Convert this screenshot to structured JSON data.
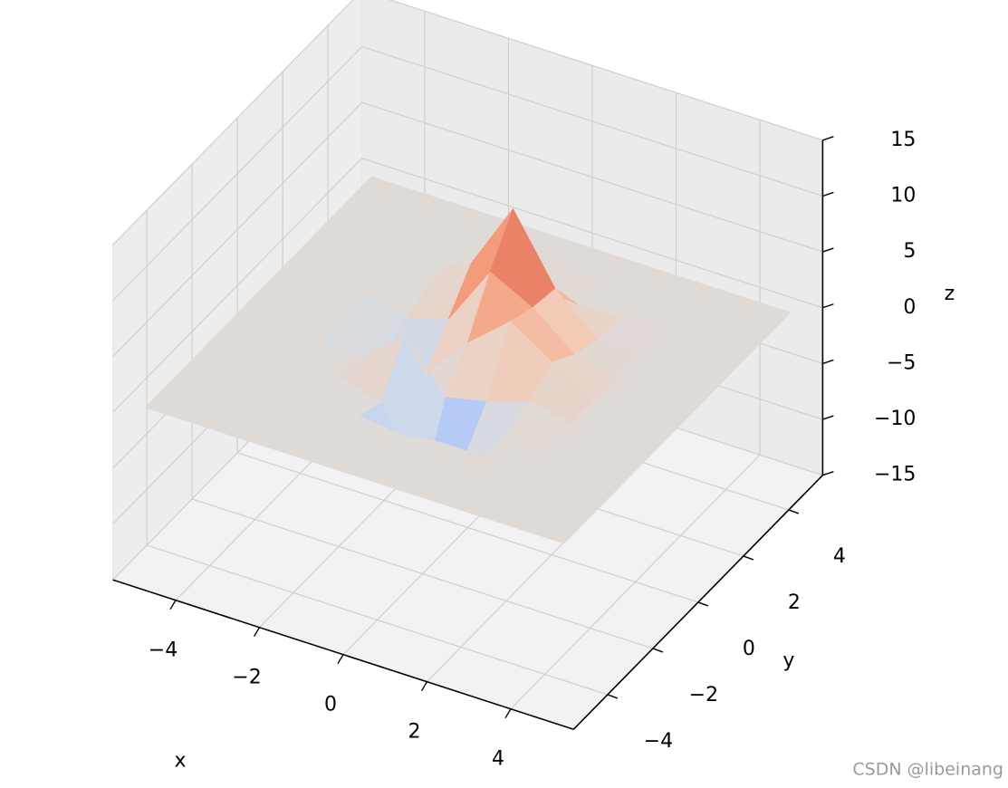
{
  "chart_data": {
    "type": "surface",
    "x": [
      -5,
      -4,
      -3,
      -2,
      -1,
      0,
      1,
      2,
      3,
      4,
      5
    ],
    "y": [
      -5,
      -4,
      -3,
      -2,
      -1,
      0,
      1,
      2,
      3,
      4,
      5
    ],
    "z": [
      [
        0,
        0,
        0,
        0,
        0,
        0,
        0,
        0,
        0,
        0,
        0
      ],
      [
        0,
        0,
        0,
        0,
        0,
        0,
        0,
        0,
        0,
        0,
        0
      ],
      [
        0,
        0,
        0,
        0,
        0,
        -0.4,
        0,
        0,
        0,
        0,
        0
      ],
      [
        0,
        0,
        0,
        0.1,
        -0.9,
        -7.6,
        -3.4,
        -0.1,
        0,
        0,
        0
      ],
      [
        0,
        0,
        0,
        -0.2,
        3.0,
        -1.2,
        -0.4,
        0.8,
        0,
        0,
        0
      ],
      [
        0,
        0,
        0,
        -2.1,
        -2.6,
        1.6,
        4.7,
        2.3,
        0,
        0,
        0
      ],
      [
        0,
        0,
        0,
        -0.8,
        0.4,
        5.9,
        3.9,
        0.9,
        0,
        0,
        0
      ],
      [
        0,
        0,
        0,
        0.1,
        3.3,
        9.4,
        3.5,
        0.2,
        0,
        0,
        0
      ],
      [
        0,
        0,
        0,
        0,
        0,
        0.5,
        0,
        0,
        0,
        0,
        0
      ],
      [
        0,
        0,
        0,
        0,
        0,
        0,
        0,
        0,
        0,
        0,
        0
      ],
      [
        0,
        0,
        0,
        0,
        0,
        0,
        0,
        0,
        0,
        0,
        0
      ]
    ],
    "colormap": "coolwarm",
    "xlabel": "x",
    "ylabel": "y",
    "zlabel": "z",
    "xlim": [
      -5.5,
      5.5
    ],
    "ylim": [
      -5.5,
      5.5
    ],
    "zlim": [
      -15,
      15
    ],
    "xticks": [
      {
        "value": -4,
        "label": "−4"
      },
      {
        "value": -2,
        "label": "−2"
      },
      0,
      2,
      4
    ],
    "yticks": [
      {
        "value": -4,
        "label": "−4"
      },
      {
        "value": -2,
        "label": "−2"
      },
      0,
      2,
      4
    ],
    "zticks": [
      {
        "value": -15,
        "label": "−15"
      },
      {
        "value": -10,
        "label": "−10"
      },
      {
        "value": -5,
        "label": "−5"
      },
      0,
      5,
      10,
      15
    ],
    "grid": true
  },
  "watermark": "CSDN @libeinang"
}
